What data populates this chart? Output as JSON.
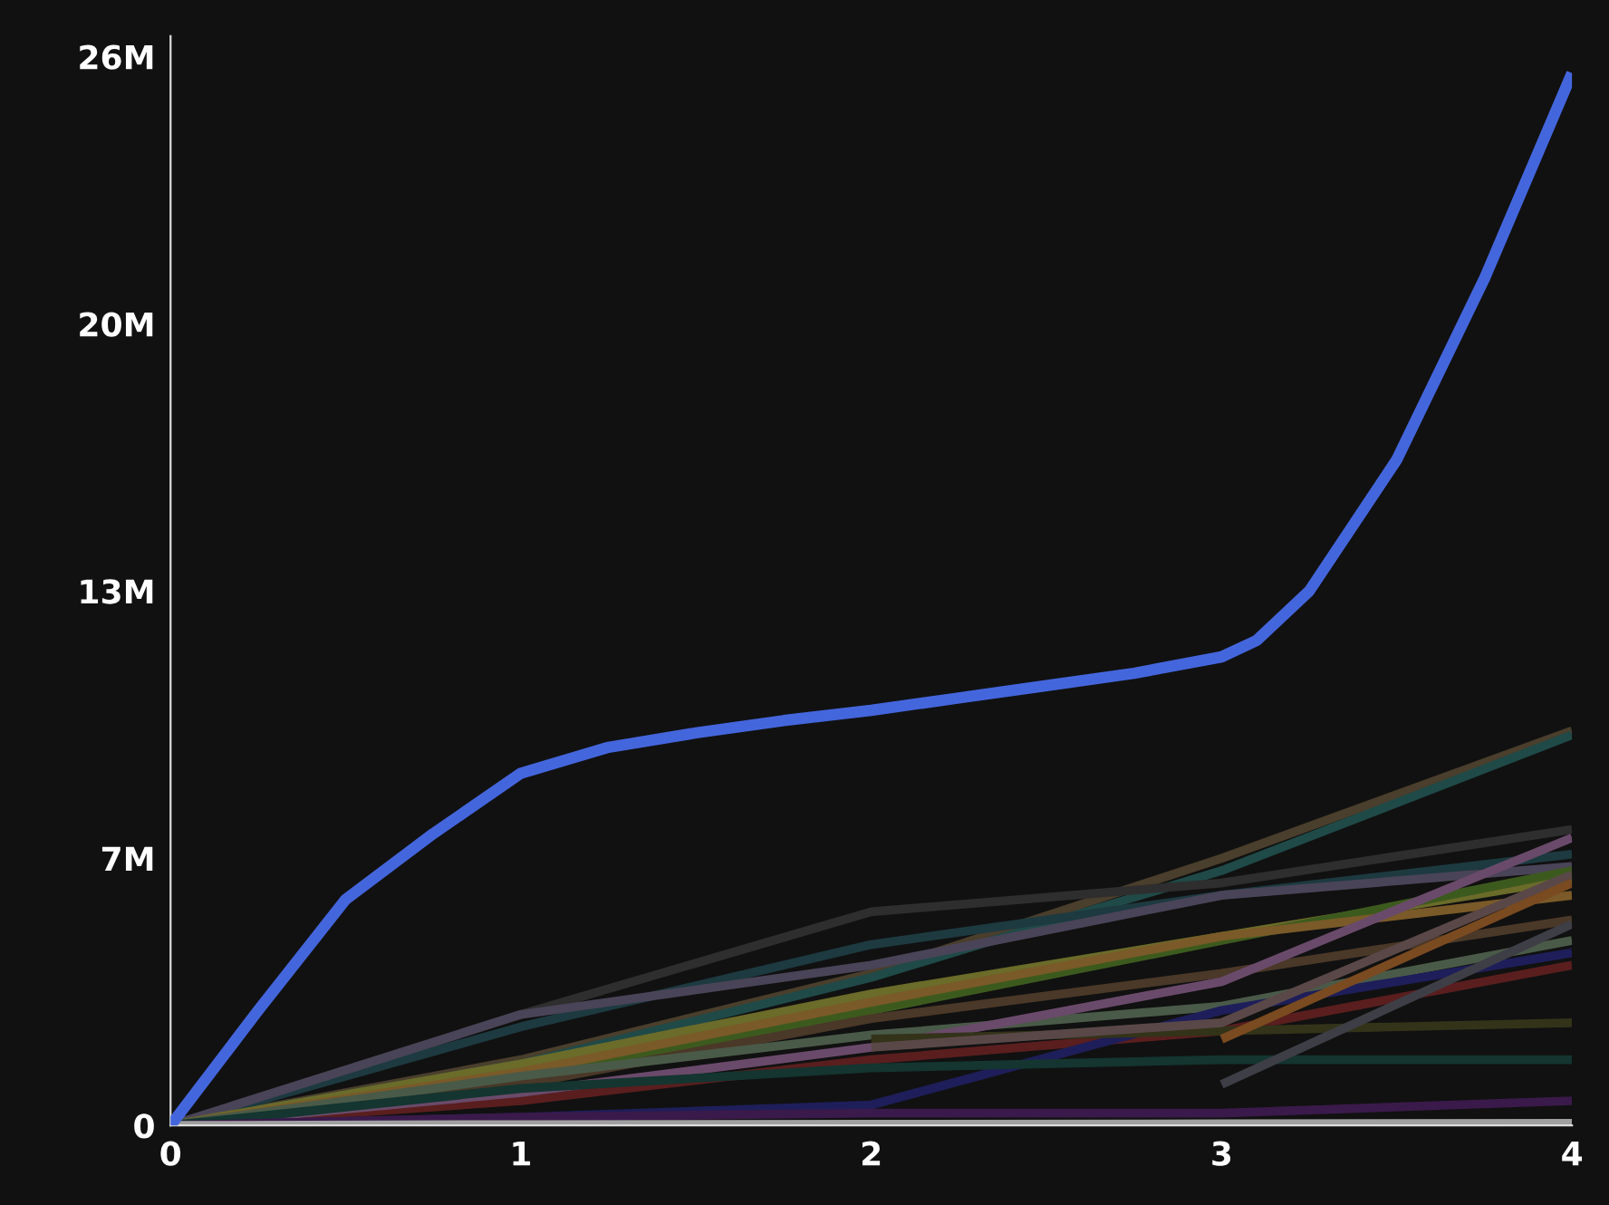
{
  "chart_data": {
    "type": "line",
    "xlim": [
      0,
      4
    ],
    "xticks": [
      0,
      1,
      2,
      3,
      4
    ],
    "ylim": [
      0,
      26500000
    ],
    "yticks": [
      0,
      {
        "value": 6500000,
        "label": "7M"
      },
      {
        "value": 13000000,
        "label": "13M"
      },
      {
        "value": 19500000,
        "label": "20M"
      },
      {
        "value": 26000000,
        "label": "26M"
      }
    ],
    "grid": false,
    "legend": false,
    "marker": "none",
    "line_style": "solid",
    "series": [
      {
        "color": "#4a3e2c",
        "x": [
          0,
          1,
          2,
          3,
          4
        ],
        "values": [
          0,
          1600000,
          3700000,
          6500000,
          9600000
        ]
      },
      {
        "color": "#1f4a48",
        "x": [
          0,
          1,
          2,
          3,
          4
        ],
        "values": [
          0,
          1500000,
          3600000,
          6200000,
          9500000
        ]
      },
      {
        "color": "#2e2e2e",
        "x": [
          0,
          1,
          2,
          3,
          4
        ],
        "values": [
          0,
          2700000,
          5200000,
          5900000,
          7200000
        ]
      },
      {
        "color": "#1d3a40",
        "x": [
          0,
          1,
          2,
          3,
          4
        ],
        "values": [
          0,
          2400000,
          4400000,
          5600000,
          6600000
        ]
      },
      {
        "color": "#4a4458",
        "x": [
          0,
          1,
          2,
          3,
          4
        ],
        "values": [
          0,
          2700000,
          3900000,
          5600000,
          6300000
        ]
      },
      {
        "color": "#6b6b2a",
        "x": [
          0,
          1,
          2,
          3,
          4
        ],
        "values": [
          0,
          1500000,
          3200000,
          4600000,
          6000000
        ]
      },
      {
        "color": "#3d5a1e",
        "x": [
          0,
          1,
          2,
          3,
          4
        ],
        "values": [
          0,
          1200000,
          2800000,
          4500000,
          6200000
        ]
      },
      {
        "color": "#7a5a28",
        "x": [
          0,
          1,
          2,
          3,
          4
        ],
        "values": [
          0,
          1300000,
          3000000,
          4600000,
          5600000
        ]
      },
      {
        "color": "#4a3828",
        "x": [
          0,
          1,
          2,
          3,
          4
        ],
        "values": [
          0,
          1000000,
          2600000,
          3700000,
          5000000
        ]
      },
      {
        "color": "#4a5a48",
        "x": [
          0,
          1,
          2,
          3,
          4
        ],
        "values": [
          0,
          1200000,
          2200000,
          2900000,
          4500000
        ]
      },
      {
        "color": "#5a1e1e",
        "x": [
          0,
          1,
          2,
          3,
          4
        ],
        "values": [
          0,
          600000,
          1600000,
          2300000,
          3900000
        ]
      },
      {
        "color": "#6a4a6a",
        "x": [
          0,
          1,
          2,
          3,
          4
        ],
        "values": [
          0,
          800000,
          1900000,
          3500000,
          7000000
        ]
      },
      {
        "color": "#1e1e5a",
        "x": [
          0,
          1,
          2,
          3,
          4
        ],
        "values": [
          0,
          200000,
          500000,
          2800000,
          4200000
        ]
      },
      {
        "color": "#143530",
        "x": [
          0,
          1,
          2,
          3,
          4
        ],
        "values": [
          0,
          900000,
          1400000,
          1600000,
          1600000
        ]
      },
      {
        "color": "#3a1a4a",
        "x": [
          0,
          1,
          2,
          3,
          4
        ],
        "values": [
          0,
          200000,
          300000,
          300000,
          600000
        ]
      },
      {
        "color": "#a0a0a0",
        "x": [
          0,
          1,
          2,
          3,
          4
        ],
        "values": [
          0,
          20000,
          30000,
          40000,
          50000
        ]
      },
      {
        "color": "#33331a",
        "x": [
          2,
          3,
          4
        ],
        "values": [
          2100000,
          2300000,
          2500000
        ]
      },
      {
        "color": "#5a4848",
        "x": [
          2,
          3,
          4
        ],
        "values": [
          1900000,
          2500000,
          6100000
        ]
      },
      {
        "color": "#7a4a20",
        "x": [
          3,
          4
        ],
        "values": [
          2100000,
          5900000
        ]
      },
      {
        "color": "#3e3e46",
        "x": [
          3,
          4
        ],
        "values": [
          1000000,
          4900000
        ]
      },
      {
        "color": "#4466dd",
        "x": [
          0,
          0.25,
          0.5,
          0.75,
          1,
          1.25,
          1.5,
          1.75,
          2,
          2.25,
          2.5,
          2.75,
          3,
          3.1,
          3.25,
          3.5,
          3.75,
          4
        ],
        "values": [
          0,
          2800000,
          5500000,
          7100000,
          8570000,
          9200000,
          9550000,
          9850000,
          10100000,
          10400000,
          10700000,
          11000000,
          11400000,
          11800000,
          13000000,
          16200000,
          20600000,
          25600000
        ]
      }
    ]
  }
}
